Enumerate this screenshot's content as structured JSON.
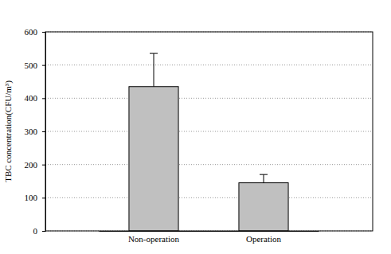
{
  "chart_data": {
    "type": "bar",
    "y_label": "TBC concentration(CFU/m³)",
    "categories": [
      "Non-operation",
      "Operation"
    ],
    "values": [
      435,
      145
    ],
    "errors": [
      100,
      25
    ],
    "color": "#c0c0c0",
    "ylim": [
      0,
      600
    ],
    "yticks": [
      0,
      100,
      200,
      300,
      400,
      500,
      600
    ],
    "grid": true
  }
}
